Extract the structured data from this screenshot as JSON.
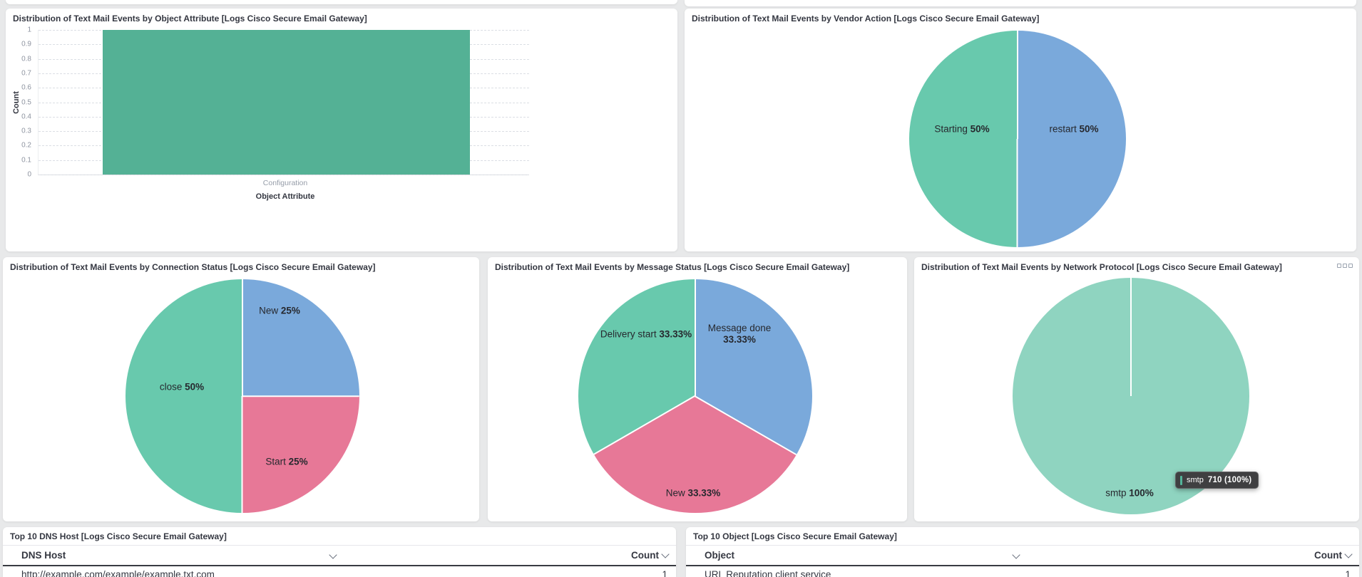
{
  "page": {
    "background": "#e8e9ea"
  },
  "icons": {
    "sort": "chevron-down",
    "panel_options": "ellipsis"
  },
  "chart_data": [
    {
      "id": "object-attribute-bar",
      "type": "bar",
      "title": "Distribution of Text Mail Events by Object Attribute [Logs Cisco Secure Email Gateway]",
      "categories": [
        "Configuration"
      ],
      "values": [
        1
      ],
      "xlabel": "Object Attribute",
      "ylabel": "Count",
      "ylim": [
        0,
        1
      ],
      "yticks": [
        "1",
        "0.9",
        "0.8",
        "0.7",
        "0.6",
        "0.5",
        "0.4",
        "0.3",
        "0.2",
        "0.1",
        "0"
      ],
      "grid": "dashed-horizontal",
      "legend": "off",
      "bar_color": "#54b195"
    },
    {
      "id": "vendor-action-pie",
      "type": "pie",
      "title": "Distribution of Text Mail Events by Vendor Action [Logs Cisco Secure Email Gateway]",
      "start_angle": "top",
      "legend": "off",
      "slices": [
        {
          "label": "restart",
          "value": 50,
          "pct": "50%",
          "color": "#7aa9db"
        },
        {
          "label": "Starting",
          "value": 50,
          "pct": "50%",
          "color": "#68c9ad"
        }
      ]
    },
    {
      "id": "connection-status-pie",
      "type": "pie",
      "title": "Distribution of Text Mail Events by Connection Status [Logs Cisco Secure Email Gateway]",
      "start_angle": "top",
      "legend": "off",
      "slices": [
        {
          "label": "New",
          "value": 25,
          "pct": "25%",
          "color": "#7aa9db"
        },
        {
          "label": "Start",
          "value": 25,
          "pct": "25%",
          "color": "#e77897"
        },
        {
          "label": "close",
          "value": 50,
          "pct": "50%",
          "color": "#68c9ad"
        }
      ]
    },
    {
      "id": "message-status-pie",
      "type": "pie",
      "title": "Distribution of Text Mail Events by Message Status [Logs Cisco Secure Email Gateway]",
      "start_angle": "top",
      "legend": "off",
      "slices": [
        {
          "label": "Message done",
          "value": 33.33,
          "pct": "33.33%",
          "color": "#7aa9db"
        },
        {
          "label": "New",
          "value": 33.33,
          "pct": "33.33%",
          "color": "#e77897"
        },
        {
          "label": "Delivery start",
          "value": 33.34,
          "pct": "33.33%",
          "color": "#68c9ad"
        }
      ]
    },
    {
      "id": "network-protocol-pie",
      "type": "pie",
      "title": "Distribution of Text Mail Events by Network Protocol [Logs Cisco Secure Email Gateway]",
      "start_angle": "top",
      "legend": "off",
      "slices": [
        {
          "label": "smtp",
          "value": 100,
          "pct": "100%",
          "color": "#8fd4c0"
        }
      ],
      "tooltip": {
        "label": "smtp",
        "value": "710 (100%)",
        "swatch": "#54b399"
      }
    },
    {
      "id": "top-dns-host-table",
      "type": "table",
      "title": "Top 10 DNS Host [Logs Cisco Secure Email Gateway]",
      "columns": [
        "DNS Host",
        "Count"
      ],
      "rows": [
        [
          "http://example.com/example/example.txt.com",
          "1"
        ]
      ]
    },
    {
      "id": "top-object-table",
      "type": "table",
      "title": "Top 10 Object [Logs Cisco Secure Email Gateway]",
      "columns": [
        "Object",
        "Count"
      ],
      "rows": [
        [
          "URL Reputation client service",
          "1"
        ]
      ]
    }
  ]
}
